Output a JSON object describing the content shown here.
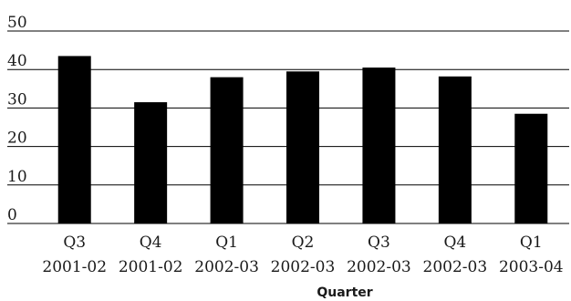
{
  "chart_data": {
    "type": "bar",
    "title": "",
    "xlabel": "Quarter",
    "ylabel": "",
    "ylim": [
      0,
      50
    ],
    "yticks": [
      "0",
      "10",
      "20",
      "30",
      "40",
      "50"
    ],
    "grid": true,
    "legend": "none",
    "bar_color": "#000000",
    "categories": [
      [
        "Q3",
        "2001-02"
      ],
      [
        "Q4",
        "2001-02"
      ],
      [
        "Q1",
        "2002-03"
      ],
      [
        "Q2",
        "2002-03"
      ],
      [
        "Q3",
        "2002-03"
      ],
      [
        "Q4",
        "2002-03"
      ],
      [
        "Q1",
        "2003-04"
      ]
    ],
    "values": [
      43.5,
      31.5,
      38,
      39.5,
      40.5,
      38.2,
      28.5
    ]
  }
}
